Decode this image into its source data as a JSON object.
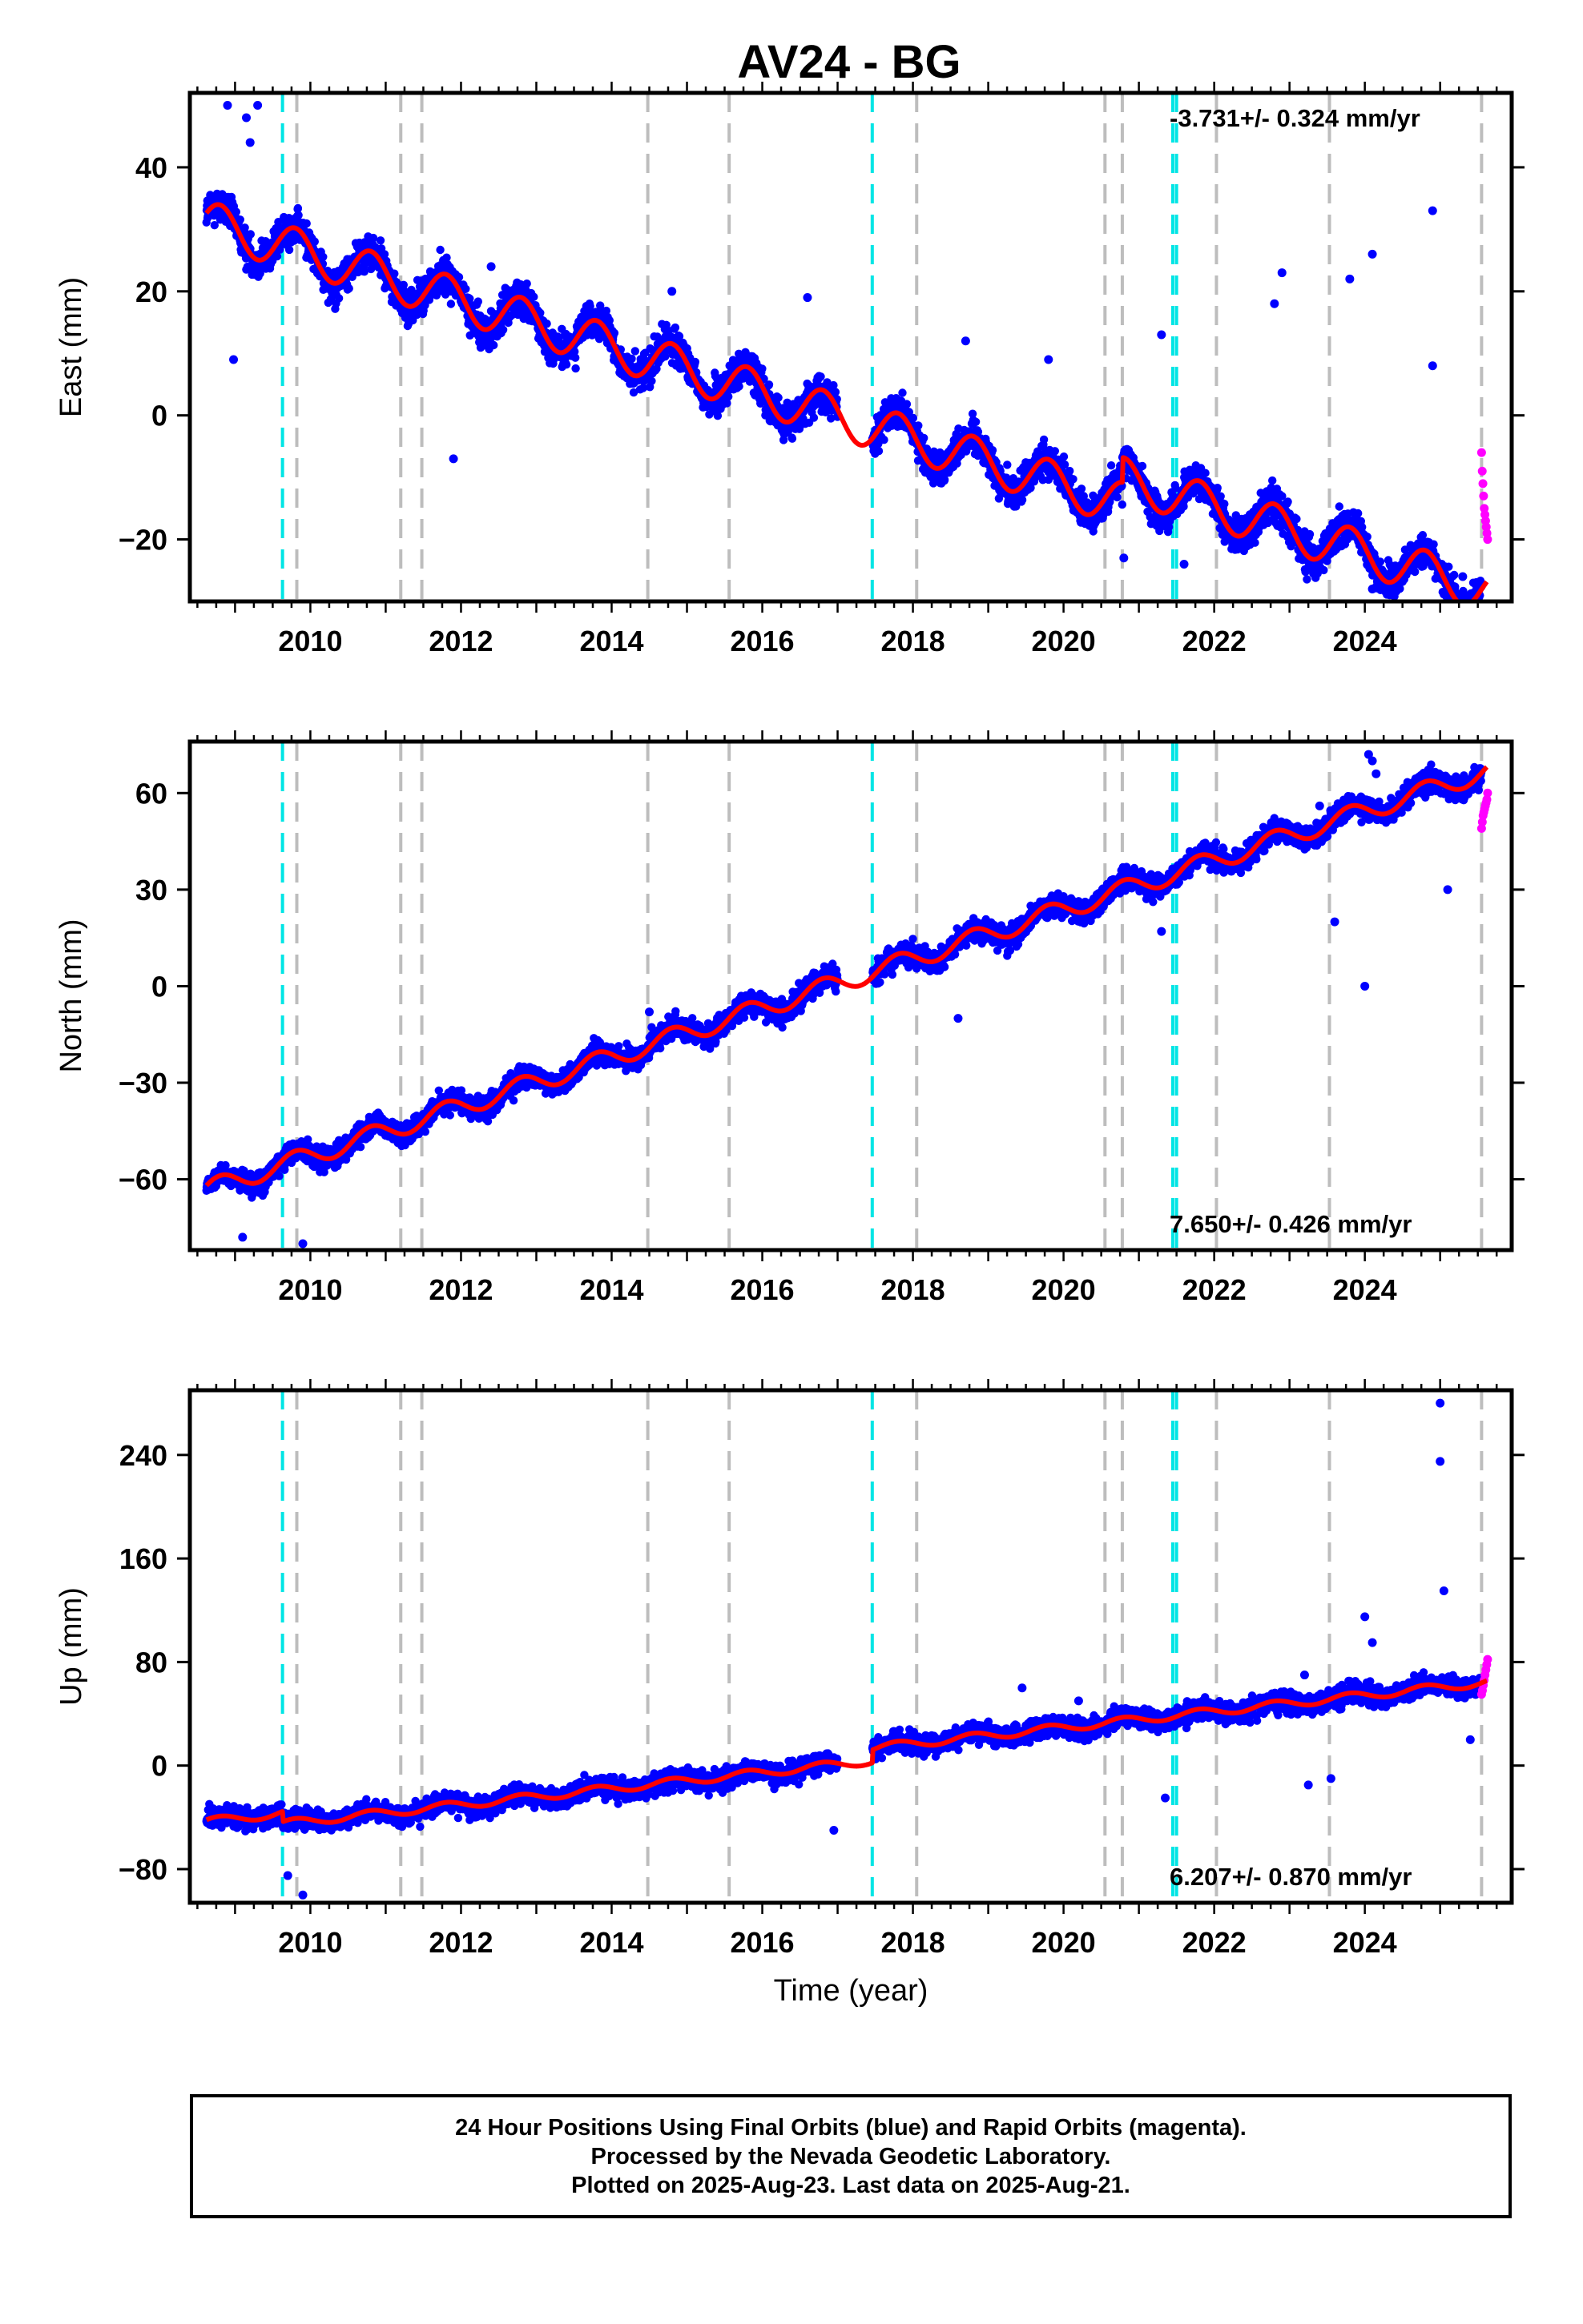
{
  "title": "AV24 - BG",
  "footer": {
    "line1": "24 Hour Positions Using Final Orbits (blue) and Rapid Orbits (magenta).",
    "line2": "Processed by the Nevada Geodetic Laboratory.",
    "line3": "Plotted on 2025-Aug-23. Last data on 2025-Aug-21."
  },
  "colors": {
    "final_orbits": "#0000ff",
    "rapid_orbits": "#ff00ff",
    "model_fit": "#ff0000",
    "equipment_change_lines": "#00e5e5",
    "other_event_lines": "#bdbdbd"
  },
  "chart_data": [
    {
      "type": "scatter",
      "panel": "east",
      "ylabel": "East (mm)",
      "xlabel": "",
      "xlim": [
        2008.4,
        2025.95
      ],
      "ylim": [
        -30,
        52
      ],
      "yticks": [
        -20,
        0,
        20,
        40
      ],
      "xticks": [
        2010,
        2012,
        2014,
        2016,
        2018,
        2020,
        2022,
        2024
      ],
      "rate_label": "-3.731+/- 0.324 mm/yr",
      "rate_position": "top-right",
      "rate_mm_per_yr": -3.731,
      "seasonal_amplitude_mm": 3.5,
      "offsets": [
        {
          "t": 2009.63,
          "dy": 0
        },
        {
          "t": 2017.46,
          "dy": 0
        },
        {
          "t": 2020.78,
          "dy": 4
        }
      ],
      "trend_anchor": {
        "t": 2008.65,
        "y": 31
      },
      "gap": [
        2017.0,
        2017.46
      ],
      "noise_mm": 2.6,
      "outliers": [
        [
          2008.9,
          50
        ],
        [
          2009.15,
          48
        ],
        [
          2009.3,
          50
        ],
        [
          2008.98,
          9
        ],
        [
          2009.2,
          44
        ],
        [
          2011.9,
          -7
        ],
        [
          2012.4,
          24
        ],
        [
          2014.8,
          20
        ],
        [
          2016.6,
          19
        ],
        [
          2018.7,
          12
        ],
        [
          2019.8,
          9
        ],
        [
          2020.8,
          -23
        ],
        [
          2021.3,
          13
        ],
        [
          2021.6,
          -24
        ],
        [
          2022.8,
          18
        ],
        [
          2022.9,
          23
        ],
        [
          2023.8,
          22
        ],
        [
          2024.1,
          26
        ],
        [
          2024.1,
          -28
        ],
        [
          2024.9,
          33
        ],
        [
          2024.9,
          8
        ],
        [
          2025.3,
          -26
        ]
      ],
      "rapid_range": [
        2025.55,
        2025.63
      ],
      "rapid_values_mm": [
        -6,
        -9,
        -11,
        -13,
        -15,
        -16,
        -17,
        -18,
        -19,
        -20
      ]
    },
    {
      "type": "scatter",
      "panel": "north",
      "ylabel": "North (mm)",
      "xlabel": "",
      "xlim": [
        2008.4,
        2025.95
      ],
      "ylim": [
        -82,
        76
      ],
      "yticks": [
        -60,
        -30,
        0,
        30,
        60
      ],
      "xticks": [
        2010,
        2012,
        2014,
        2016,
        2018,
        2020,
        2022,
        2024
      ],
      "rate_label": "7.650+/- 0.426 mm/yr",
      "rate_position": "bottom-right",
      "rate_mm_per_yr": 7.65,
      "seasonal_amplitude_mm": 3,
      "offsets": [
        {
          "t": 2017.46,
          "dy": 0
        }
      ],
      "trend_anchor": {
        "t": 2008.65,
        "y": -63
      },
      "gap": [
        2017.0,
        2017.46
      ],
      "noise_mm": 3.2,
      "outliers": [
        [
          2009.1,
          -78
        ],
        [
          2009.9,
          -80
        ],
        [
          2014.5,
          -8
        ],
        [
          2018.6,
          -10
        ],
        [
          2021.3,
          17
        ],
        [
          2023.4,
          56
        ],
        [
          2023.6,
          20
        ],
        [
          2024.0,
          0
        ],
        [
          2024.05,
          72
        ],
        [
          2024.1,
          70
        ],
        [
          2024.15,
          66
        ],
        [
          2025.1,
          30
        ]
      ],
      "rapid_range": [
        2025.55,
        2025.63
      ],
      "rapid_values_mm": [
        49,
        51,
        53,
        54,
        55,
        56,
        57,
        58,
        60
      ]
    },
    {
      "type": "scatter",
      "panel": "up",
      "ylabel": "Up (mm)",
      "xlabel": "Time (year)",
      "xlim": [
        2008.4,
        2025.95
      ],
      "ylim": [
        -106,
        290
      ],
      "yticks": [
        -80,
        0,
        80,
        160,
        240
      ],
      "xticks": [
        2010,
        2012,
        2014,
        2016,
        2018,
        2020,
        2022,
        2024
      ],
      "rate_label": "6.207+/- 0.870 mm/yr",
      "rate_position": "bottom-right",
      "rate_mm_per_yr": 6.207,
      "seasonal_amplitude_mm": 3,
      "offsets": [
        {
          "t": 2009.63,
          "dy": -8
        },
        {
          "t": 2017.46,
          "dy": 10
        }
      ],
      "trend_anchor": {
        "t": 2008.65,
        "y": -43
      },
      "gap": [
        2017.0,
        2017.46
      ],
      "noise_mm": 7,
      "outliers": [
        [
          2009.7,
          -85
        ],
        [
          2009.9,
          -100
        ],
        [
          2016.95,
          -50
        ],
        [
          2019.45,
          60
        ],
        [
          2020.2,
          50
        ],
        [
          2021.35,
          -25
        ],
        [
          2021.85,
          50
        ],
        [
          2023.2,
          70
        ],
        [
          2023.25,
          -15
        ],
        [
          2023.55,
          -10
        ],
        [
          2024.0,
          115
        ],
        [
          2024.1,
          95
        ],
        [
          2025.0,
          280
        ],
        [
          2025.0,
          235
        ],
        [
          2025.05,
          135
        ],
        [
          2025.4,
          20
        ]
      ],
      "rapid_range": [
        2025.55,
        2025.63
      ],
      "rapid_values_mm": [
        55,
        58,
        62,
        66,
        70,
        74,
        78,
        82
      ]
    }
  ],
  "event_lines": {
    "cyan": [
      2009.63,
      2017.46,
      2021.45,
      2021.5
    ],
    "gray": [
      2009.82,
      2011.2,
      2011.48,
      2014.48,
      2015.56,
      2018.05,
      2020.55,
      2020.78,
      2022.03,
      2023.53,
      2025.55
    ]
  }
}
